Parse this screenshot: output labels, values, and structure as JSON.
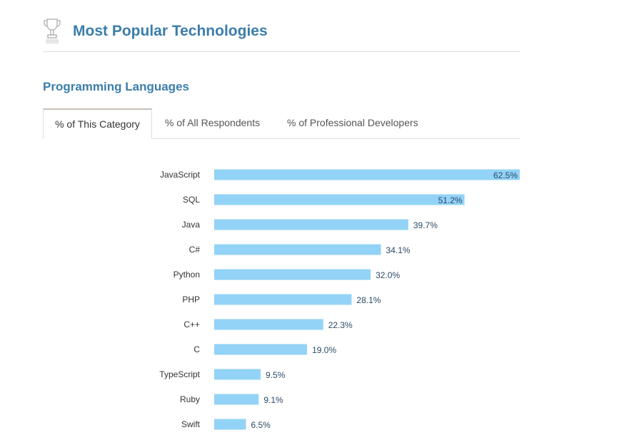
{
  "header": {
    "title": "Most Popular Technologies",
    "icon": "trophy-icon"
  },
  "section": {
    "title": "Programming Languages"
  },
  "tabs": [
    {
      "label": "% of This Category",
      "active": true
    },
    {
      "label": "% of All Respondents",
      "active": false
    },
    {
      "label": "% of Professional Developers",
      "active": false
    }
  ],
  "colors": {
    "bar": "#93d3f7",
    "title": "#3b7dab"
  },
  "chart_data": {
    "type": "bar",
    "orientation": "horizontal",
    "categories": [
      "JavaScript",
      "SQL",
      "Java",
      "C#",
      "Python",
      "PHP",
      "C++",
      "C",
      "TypeScript",
      "Ruby",
      "Swift"
    ],
    "values": [
      62.5,
      51.2,
      39.7,
      34.1,
      32.0,
      28.1,
      22.3,
      19.0,
      9.5,
      9.1,
      6.5
    ],
    "labels": [
      "62.5%",
      "51.2%",
      "39.7%",
      "34.1%",
      "32.0%",
      "28.1%",
      "22.3%",
      "19.0%",
      "9.5%",
      "9.1%",
      "6.5%"
    ],
    "xlim": [
      0,
      62.5
    ],
    "grid": false
  }
}
